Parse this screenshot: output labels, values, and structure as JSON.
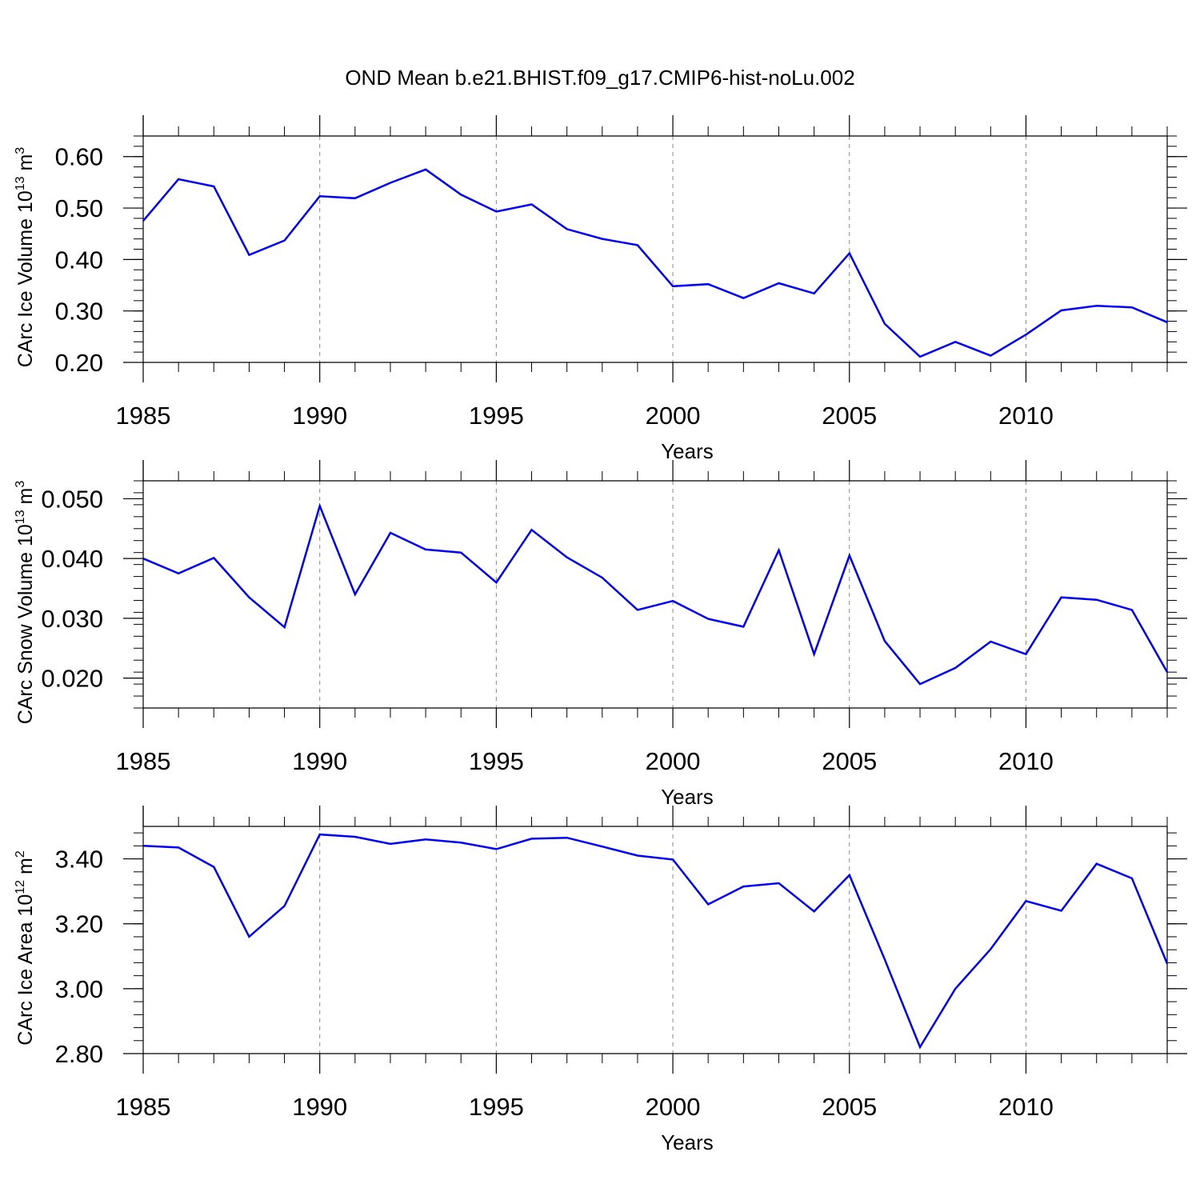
{
  "title": "OND Mean b.e21.BHIST.f09_g17.CMIP6-hist-noLu.002",
  "chart_data": [
    {
      "type": "line",
      "ylabel": "CArc Ice Volume 10",
      "ylabel_exp": "13",
      "ylabel_unit": " m",
      "ylabel_unit_exp": "3",
      "xlabel": "Years",
      "xlim": [
        1985,
        2014
      ],
      "ylim": [
        0.2,
        0.64
      ],
      "yticks": [
        0.2,
        0.3,
        0.4,
        0.5,
        0.6
      ],
      "ytick_labels": [
        "0.20",
        "0.30",
        "0.40",
        "0.50",
        "0.60"
      ],
      "yminor_step": 0.02,
      "xticks": [
        1985,
        1990,
        1995,
        2000,
        2005,
        2010
      ],
      "xtick_labels": [
        "1985",
        "1990",
        "1995",
        "2000",
        "2005",
        "2010"
      ],
      "color": "#0000ff",
      "x": [
        1985,
        1986,
        1987,
        1988,
        1989,
        1990,
        1991,
        1992,
        1993,
        1994,
        1995,
        1996,
        1997,
        1998,
        1999,
        2000,
        2001,
        2002,
        2003,
        2004,
        2005,
        2006,
        2007,
        2008,
        2009,
        2010,
        2011,
        2012,
        2013,
        2014
      ],
      "values": [
        0.475,
        0.556,
        0.542,
        0.409,
        0.437,
        0.523,
        0.519,
        0.549,
        0.575,
        0.526,
        0.493,
        0.507,
        0.459,
        0.44,
        0.428,
        0.348,
        0.352,
        0.325,
        0.354,
        0.334,
        0.412,
        0.275,
        0.211,
        0.24,
        0.213,
        0.254,
        0.301,
        0.31,
        0.307,
        0.278
      ]
    },
    {
      "type": "line",
      "ylabel": "CArc Snow Volume 10",
      "ylabel_exp": "13",
      "ylabel_unit": " m",
      "ylabel_unit_exp": "3",
      "xlabel": "Years",
      "xlim": [
        1985,
        2014
      ],
      "ylim": [
        0.015,
        0.053
      ],
      "yticks": [
        0.02,
        0.03,
        0.04,
        0.05
      ],
      "ytick_labels": [
        "0.020",
        "0.030",
        "0.040",
        "0.050"
      ],
      "yminor_step": 0.002,
      "xticks": [
        1985,
        1990,
        1995,
        2000,
        2005,
        2010
      ],
      "xtick_labels": [
        "1985",
        "1990",
        "1995",
        "2000",
        "2005",
        "2010"
      ],
      "color": "#0000ff",
      "x": [
        1985,
        1986,
        1987,
        1988,
        1989,
        1990,
        1991,
        1992,
        1993,
        1994,
        1995,
        1996,
        1997,
        1998,
        1999,
        2000,
        2001,
        2002,
        2003,
        2004,
        2005,
        2006,
        2007,
        2008,
        2009,
        2010,
        2011,
        2012,
        2013,
        2014
      ],
      "values": [
        0.04,
        0.0375,
        0.0401,
        0.0335,
        0.0285,
        0.0488,
        0.034,
        0.0443,
        0.0415,
        0.041,
        0.036,
        0.0448,
        0.0402,
        0.0368,
        0.0314,
        0.0329,
        0.0299,
        0.0286,
        0.0414,
        0.024,
        0.0405,
        0.0262,
        0.019,
        0.0217,
        0.0261,
        0.024,
        0.0335,
        0.0331,
        0.0314,
        0.021
      ]
    },
    {
      "type": "line",
      "ylabel": "CArc Ice Area 10",
      "ylabel_exp": "12",
      "ylabel_unit": " m",
      "ylabel_unit_exp": "2",
      "xlabel": "Years",
      "xlim": [
        1985,
        2014
      ],
      "ylim": [
        2.8,
        3.5
      ],
      "yticks": [
        2.8,
        3.0,
        3.2,
        3.4
      ],
      "ytick_labels": [
        "2.80",
        "3.00",
        "3.20",
        "3.40"
      ],
      "yminor_step": 0.04,
      "xticks": [
        1985,
        1990,
        1995,
        2000,
        2005,
        2010
      ],
      "xtick_labels": [
        "1985",
        "1990",
        "1995",
        "2000",
        "2005",
        "2010"
      ],
      "color": "#0000ff",
      "x": [
        1985,
        1986,
        1987,
        1988,
        1989,
        1990,
        1991,
        1992,
        1993,
        1994,
        1995,
        1996,
        1997,
        1998,
        1999,
        2000,
        2001,
        2002,
        2003,
        2004,
        2005,
        2006,
        2007,
        2008,
        2009,
        2010,
        2011,
        2012,
        2013,
        2014
      ],
      "values": [
        3.44,
        3.435,
        3.375,
        3.16,
        3.255,
        3.475,
        3.468,
        3.446,
        3.46,
        3.45,
        3.43,
        3.462,
        3.465,
        3.438,
        3.41,
        3.398,
        3.26,
        3.315,
        3.325,
        3.238,
        3.35,
        3.09,
        2.82,
        3.0,
        3.122,
        3.27,
        3.24,
        3.385,
        3.34,
        3.077
      ]
    }
  ]
}
